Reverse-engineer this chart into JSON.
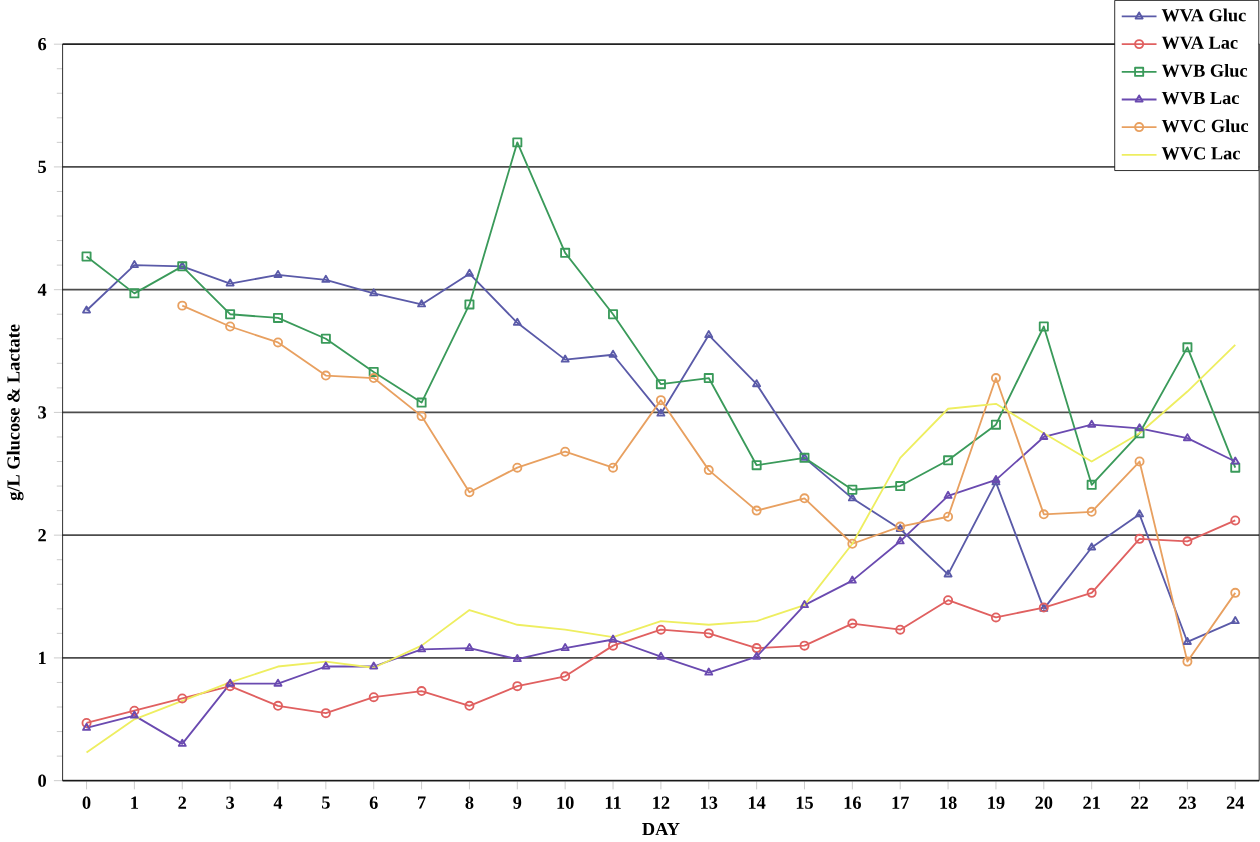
{
  "chart_data": {
    "type": "line",
    "xlabel": "DAY",
    "ylabel": "g/L Glucose & Lactate",
    "x": [
      0,
      1,
      2,
      3,
      4,
      5,
      6,
      7,
      8,
      9,
      10,
      11,
      12,
      13,
      14,
      15,
      16,
      17,
      18,
      19,
      20,
      21,
      22,
      23,
      24
    ],
    "xlim": [
      -0.5,
      24.5
    ],
    "xticks": [
      0,
      1,
      2,
      3,
      4,
      5,
      6,
      7,
      8,
      9,
      10,
      11,
      12,
      13,
      14,
      15,
      16,
      17,
      18,
      19,
      20,
      21,
      22,
      23,
      24
    ],
    "ylim": [
      0,
      6
    ],
    "yticks": [
      0,
      1,
      2,
      3,
      4,
      5,
      6
    ],
    "grid": "y",
    "legend": "top right",
    "line_style": "solid",
    "series": [
      {
        "name": "WVA Gluc",
        "color": "#5a5aa8",
        "marker": "triangle",
        "values": [
          3.83,
          4.2,
          4.19,
          4.05,
          4.12,
          4.08,
          3.97,
          3.88,
          4.13,
          3.73,
          3.43,
          3.47,
          2.99,
          3.63,
          3.23,
          2.63,
          2.3,
          2.05,
          1.68,
          2.43,
          1.4,
          1.9,
          2.17,
          1.13,
          1.3
        ]
      },
      {
        "name": "WVA Lac",
        "color": "#e06060",
        "marker": "circle",
        "values": [
          0.47,
          0.57,
          0.67,
          0.77,
          0.61,
          0.55,
          0.68,
          0.73,
          0.61,
          0.77,
          0.85,
          1.1,
          1.23,
          1.2,
          1.08,
          1.1,
          1.28,
          1.23,
          1.47,
          1.33,
          1.41,
          1.53,
          1.97,
          1.95,
          2.12
        ]
      },
      {
        "name": "WVB Gluc",
        "color": "#3a9a5a",
        "marker": "square",
        "values": [
          4.27,
          3.97,
          4.19,
          3.8,
          3.77,
          3.6,
          3.33,
          3.08,
          3.88,
          5.2,
          4.3,
          3.8,
          3.23,
          3.28,
          2.57,
          2.63,
          2.37,
          2.4,
          2.61,
          2.9,
          3.7,
          2.41,
          2.83,
          3.53,
          2.55
        ]
      },
      {
        "name": "WVB Lac",
        "color": "#6a4ab0",
        "marker": "triangle",
        "values": [
          0.43,
          0.53,
          0.3,
          0.79,
          0.79,
          0.93,
          0.93,
          1.07,
          1.08,
          0.99,
          1.08,
          1.15,
          1.01,
          0.88,
          1.01,
          1.43,
          1.63,
          1.95,
          2.32,
          2.45,
          2.8,
          2.9,
          2.87,
          2.79,
          2.6
        ]
      },
      {
        "name": "WVC Gluc",
        "color": "#e8a060",
        "marker": "circle",
        "values": [
          null,
          null,
          3.87,
          3.7,
          3.57,
          3.3,
          3.28,
          2.97,
          2.35,
          2.55,
          2.68,
          2.55,
          3.1,
          2.53,
          2.2,
          2.3,
          1.93,
          2.07,
          2.15,
          3.28,
          2.17,
          2.19,
          2.6,
          0.97,
          1.53
        ]
      },
      {
        "name": "WVC Lac",
        "color": "#eeee60",
        "marker": "none",
        "values": [
          0.23,
          0.5,
          0.65,
          0.8,
          0.93,
          0.97,
          0.92,
          1.1,
          1.39,
          1.27,
          1.23,
          1.17,
          1.3,
          1.27,
          1.3,
          1.43,
          1.93,
          2.63,
          3.03,
          3.07,
          2.83,
          2.6,
          2.83,
          3.17,
          3.55
        ]
      }
    ]
  }
}
